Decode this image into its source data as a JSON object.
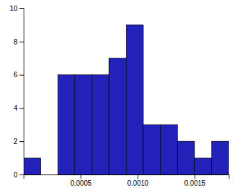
{
  "chart_data": {
    "type": "histogram",
    "bins": [
      0.0,
      0.00015,
      0.0003,
      0.00045,
      0.0006,
      0.00075,
      0.0009,
      0.00105,
      0.0012,
      0.00135,
      0.0015,
      0.00165,
      0.0018
    ],
    "values": [
      1,
      0,
      6,
      6,
      6,
      7,
      9,
      3,
      3,
      2,
      1,
      2
    ],
    "color": "#2222BB",
    "xlim": [
      0.0,
      0.0018
    ],
    "ylim": [
      0,
      10
    ],
    "xticks": [
      0.0005,
      {
        "value": 0.001,
        "label": "0.0010"
      },
      0.0015
    ],
    "yticks": [
      0,
      2,
      4,
      6,
      8,
      10
    ]
  }
}
